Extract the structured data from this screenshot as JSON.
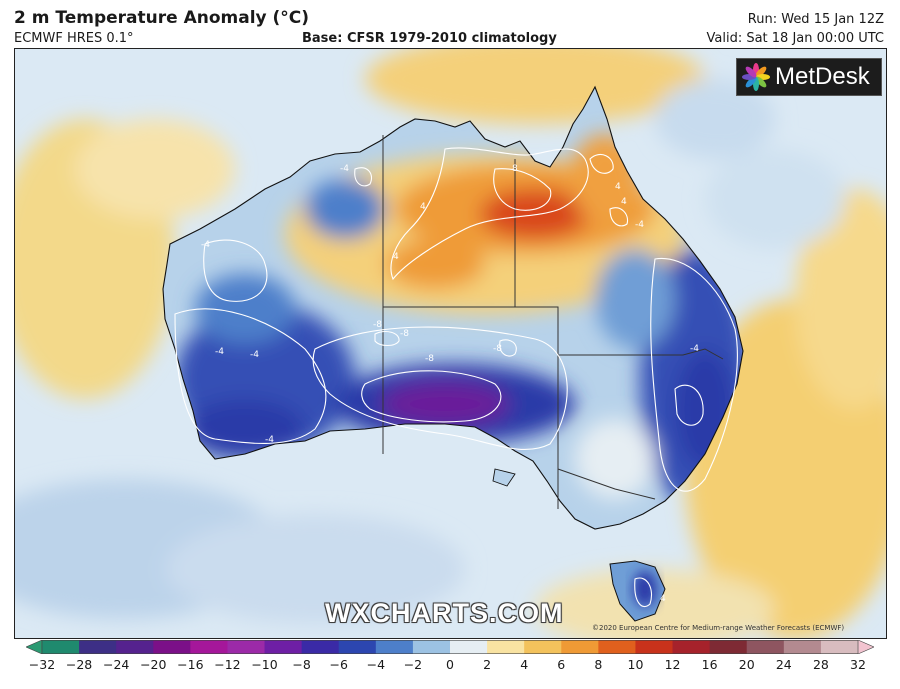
{
  "header": {
    "title": "2 m Temperature Anomaly (°C)",
    "model": "ECMWF HRES 0.1°",
    "base": "Base: CFSR 1979-2010 climatology",
    "run": "Run: Wed 15 Jan 12Z",
    "valid": "Valid: Sat 18 Jan 00:00 UTC"
  },
  "logo": {
    "text": "MetDesk",
    "icon": "metdesk-flower-icon"
  },
  "watermark": "WXCHARTS.COM",
  "copyright": "©2020 European Centre for Medium-range Weather Forecasts (ECMWF)",
  "contour_labels": [
    "-4",
    "-4",
    "-4",
    "-4",
    "-4",
    "-4",
    "-4",
    "-8",
    "-8",
    "-8",
    "-8",
    "4",
    "4",
    "4",
    "4",
    "8",
    "4"
  ],
  "colorbar": {
    "ticks": [
      "−32",
      "−28",
      "−24",
      "−20",
      "−16",
      "−12",
      "−10",
      "−8",
      "−6",
      "−4",
      "−2",
      "0",
      "2",
      "4",
      "6",
      "8",
      "10",
      "12",
      "16",
      "20",
      "24",
      "28",
      "32"
    ],
    "colors": [
      "#1f8a6e",
      "#3d2f86",
      "#55228e",
      "#7b1088",
      "#a5179a",
      "#9c2aa8",
      "#6e1fa5",
      "#3a2aa6",
      "#2c46b0",
      "#4d7fca",
      "#9cc2e3",
      "#e6eef3",
      "#f9e3a2",
      "#f3c25c",
      "#ef9a35",
      "#e0601d",
      "#c8321b",
      "#a6222b",
      "#7e2a34",
      "#8e5560",
      "#b38a90",
      "#d8bcbf",
      "#f0c9cf"
    ],
    "arrow_left": "#2b9a72",
    "arrow_right": "#f2c4d0"
  },
  "colors": {
    "ocean_pale": "#dbe9f4",
    "warm_yellow": "#f5d27a",
    "warm_orange": "#ef9b38",
    "hot_red": "#d9461e",
    "cool_blue": "#4d7fca",
    "cold_navy": "#2a3aa8",
    "coldest_purple": "#6a1a9a"
  }
}
